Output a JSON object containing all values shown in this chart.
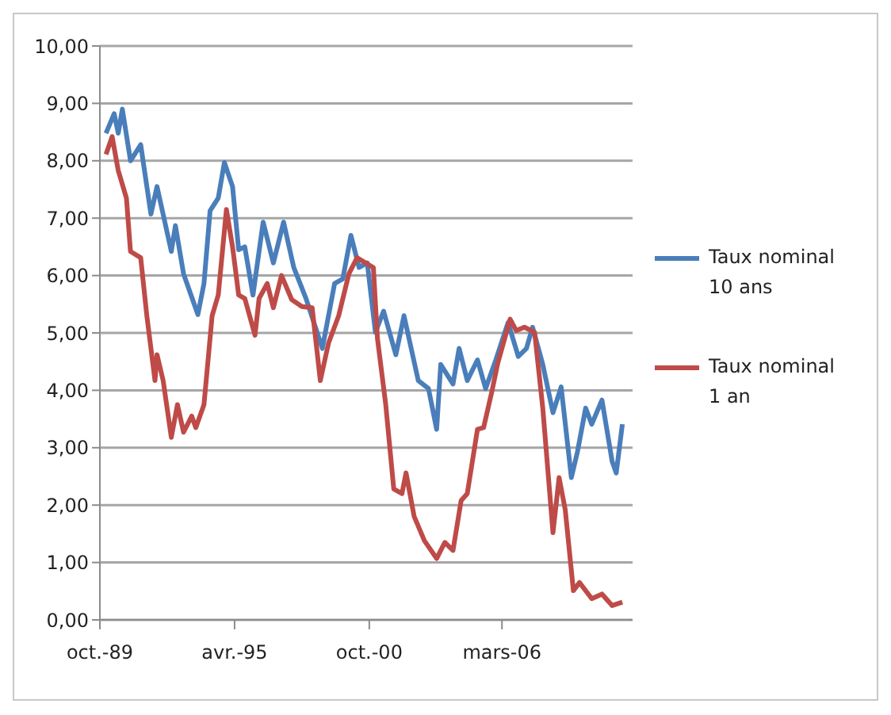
{
  "chart_data": {
    "type": "line",
    "series": [
      {
        "name": "Taux nominal 10 ans",
        "color": "#4a7ebb",
        "x": [
          "1990-01",
          "1990-05",
          "1990-07",
          "1990-09",
          "1991-01",
          "1991-06",
          "1991-11",
          "1992-02",
          "1992-09",
          "1992-11",
          "1993-03",
          "1993-10",
          "1994-01",
          "1994-04",
          "1994-08",
          "1994-11",
          "1995-03",
          "1995-06",
          "1995-09",
          "1996-01",
          "1996-06",
          "1996-11",
          "1997-04",
          "1997-09",
          "1998-03",
          "1998-11",
          "1999-05",
          "1999-09",
          "2000-01",
          "2000-05",
          "2000-09",
          "2001-01",
          "2001-05",
          "2001-11",
          "2002-03",
          "2002-10",
          "2003-03",
          "2003-07",
          "2003-09",
          "2004-03",
          "2004-06",
          "2004-10",
          "2005-03",
          "2005-07",
          "2005-12",
          "2006-06",
          "2006-11",
          "2007-03",
          "2007-06",
          "2007-11",
          "2008-04",
          "2008-08",
          "2009-01",
          "2009-04",
          "2009-08",
          "2009-11",
          "2010-04",
          "2010-09",
          "2010-11",
          "2011-02"
        ],
        "values": [
          8.48,
          8.82,
          8.48,
          8.9,
          8.0,
          8.28,
          7.07,
          7.55,
          6.42,
          6.87,
          6.03,
          5.32,
          5.86,
          7.13,
          7.35,
          7.97,
          7.55,
          6.45,
          6.5,
          5.66,
          6.93,
          6.22,
          6.93,
          6.14,
          5.6,
          4.73,
          5.86,
          5.94,
          6.7,
          6.14,
          6.22,
          5.01,
          5.38,
          4.62,
          5.3,
          4.17,
          4.03,
          3.32,
          4.45,
          4.11,
          4.73,
          4.17,
          4.53,
          4.03,
          4.53,
          5.18,
          4.59,
          4.73,
          5.1,
          4.45,
          3.61,
          4.06,
          2.48,
          2.93,
          3.69,
          3.41,
          3.83,
          2.76,
          2.56,
          3.41
        ]
      },
      {
        "name": "Taux nominal 1 an",
        "color": "#be4b48",
        "x": [
          "1990-01",
          "1990-04",
          "1990-07",
          "1990-11",
          "1991-01",
          "1991-06",
          "1991-09",
          "1992-01",
          "1992-02",
          "1992-05",
          "1992-09",
          "1992-12",
          "1993-03",
          "1993-07",
          "1993-09",
          "1994-01",
          "1994-05",
          "1994-08",
          "1994-12",
          "1995-03",
          "1995-06",
          "1995-09",
          "1996-02",
          "1996-04",
          "1996-08",
          "1996-11",
          "1997-03",
          "1997-08",
          "1998-01",
          "1998-06",
          "1998-10",
          "1999-02",
          "1999-07",
          "1999-12",
          "2000-04",
          "2000-12",
          "2001-02",
          "2001-06",
          "2001-10",
          "2002-02",
          "2002-04",
          "2002-08",
          "2003-01",
          "2003-07",
          "2003-11",
          "2004-03",
          "2004-07",
          "2004-10",
          "2005-03",
          "2005-06",
          "2005-10",
          "2006-01",
          "2006-07",
          "2006-10",
          "2007-02",
          "2007-07",
          "2007-11",
          "2008-04",
          "2008-07",
          "2008-10",
          "2009-02",
          "2009-05",
          "2009-11",
          "2010-04",
          "2010-09",
          "2011-02"
        ],
        "values": [
          8.11,
          8.42,
          7.83,
          7.35,
          6.42,
          6.31,
          5.3,
          4.17,
          4.62,
          4.17,
          3.18,
          3.75,
          3.27,
          3.55,
          3.35,
          3.75,
          5.3,
          5.66,
          7.15,
          6.5,
          5.66,
          5.6,
          4.96,
          5.6,
          5.86,
          5.44,
          6.0,
          5.58,
          5.46,
          5.44,
          4.17,
          4.82,
          5.3,
          6.03,
          6.31,
          6.14,
          4.9,
          3.77,
          2.28,
          2.2,
          2.56,
          1.8,
          1.38,
          1.07,
          1.35,
          1.21,
          2.08,
          2.2,
          3.32,
          3.35,
          3.97,
          4.48,
          5.24,
          5.04,
          5.1,
          5.01,
          3.69,
          1.52,
          2.48,
          1.92,
          0.51,
          0.65,
          0.37,
          0.45,
          0.25,
          0.31
        ]
      }
    ],
    "xlim": [
      "1989-10",
      "2011-07"
    ],
    "xticks": [
      {
        "value": "1989-10",
        "label": "oct.-89"
      },
      {
        "value": "1995-04",
        "label": "avr.-95"
      },
      {
        "value": "2000-10",
        "label": "oct.-00"
      },
      {
        "value": "2006-03",
        "label": "mars-06"
      }
    ],
    "ylim": [
      0,
      10
    ],
    "yticks": [
      {
        "value": 0,
        "label": "0,00"
      },
      {
        "value": 1,
        "label": "1,00"
      },
      {
        "value": 2,
        "label": "2,00"
      },
      {
        "value": 3,
        "label": "3,00"
      },
      {
        "value": 4,
        "label": "4,00"
      },
      {
        "value": 5,
        "label": "5,00"
      },
      {
        "value": 6,
        "label": "6,00"
      },
      {
        "value": 7,
        "label": "7,00"
      },
      {
        "value": 8,
        "label": "8,00"
      },
      {
        "value": 9,
        "label": "9,00"
      },
      {
        "value": 10,
        "label": "10,00"
      }
    ],
    "grid": "y",
    "legend": "right",
    "marker": "none",
    "line_style": "solid"
  }
}
